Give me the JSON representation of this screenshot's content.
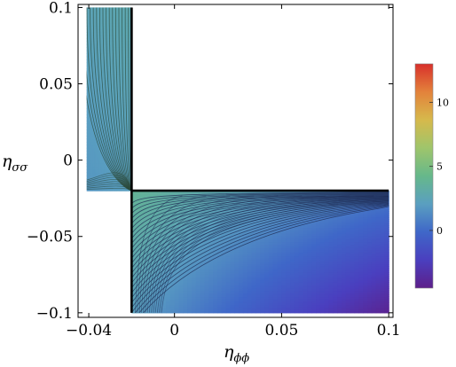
{
  "chart_data": {
    "type": "heatmap",
    "subtype": "contour",
    "xlabel": "η_ϕϕ",
    "ylabel": "η_σσ",
    "xlabel_main": "η",
    "xlabel_sub": "ϕϕ",
    "ylabel_main": "η",
    "ylabel_sub": "σσ",
    "xlim": [
      -0.045,
      0.102
    ],
    "ylim": [
      -0.103,
      0.102
    ],
    "x_ticks": [
      {
        "value": -0.04,
        "label": "−0.04"
      },
      {
        "value": 0,
        "label": "0"
      },
      {
        "value": 0.05,
        "label": "0.05"
      },
      {
        "value": 0.1,
        "label": "0.1"
      }
    ],
    "y_ticks": [
      {
        "value": 0.1,
        "label": "0.1"
      },
      {
        "value": 0.05,
        "label": "0.05"
      },
      {
        "value": 0,
        "label": "0"
      },
      {
        "value": -0.05,
        "label": "−0.05"
      },
      {
        "value": -0.1,
        "label": "−0.1"
      }
    ],
    "regions": [
      {
        "name": "upper-left",
        "x": [
          -0.041,
          -0.02
        ],
        "y": [
          -0.02,
          0.1
        ]
      },
      {
        "name": "lower-right",
        "x": [
          -0.02,
          0.1
        ],
        "y": [
          -0.1,
          -0.02
        ]
      }
    ],
    "boundary_x": -0.02,
    "boundary_y": -0.02,
    "colorbar": {
      "range": [
        -4.5,
        13
      ],
      "ticks": [
        {
          "value": 10,
          "label": "10"
        },
        {
          "value": 5,
          "label": "5"
        },
        {
          "value": 0,
          "label": "0"
        }
      ],
      "colors": [
        "#5d1f8a",
        "#4a3fbf",
        "#3f67c8",
        "#5a9fc0",
        "#66b88b",
        "#9fc56b",
        "#d6b94c",
        "#e3823b",
        "#d8302b"
      ]
    },
    "grid": false,
    "legend": "colorbar-right"
  }
}
